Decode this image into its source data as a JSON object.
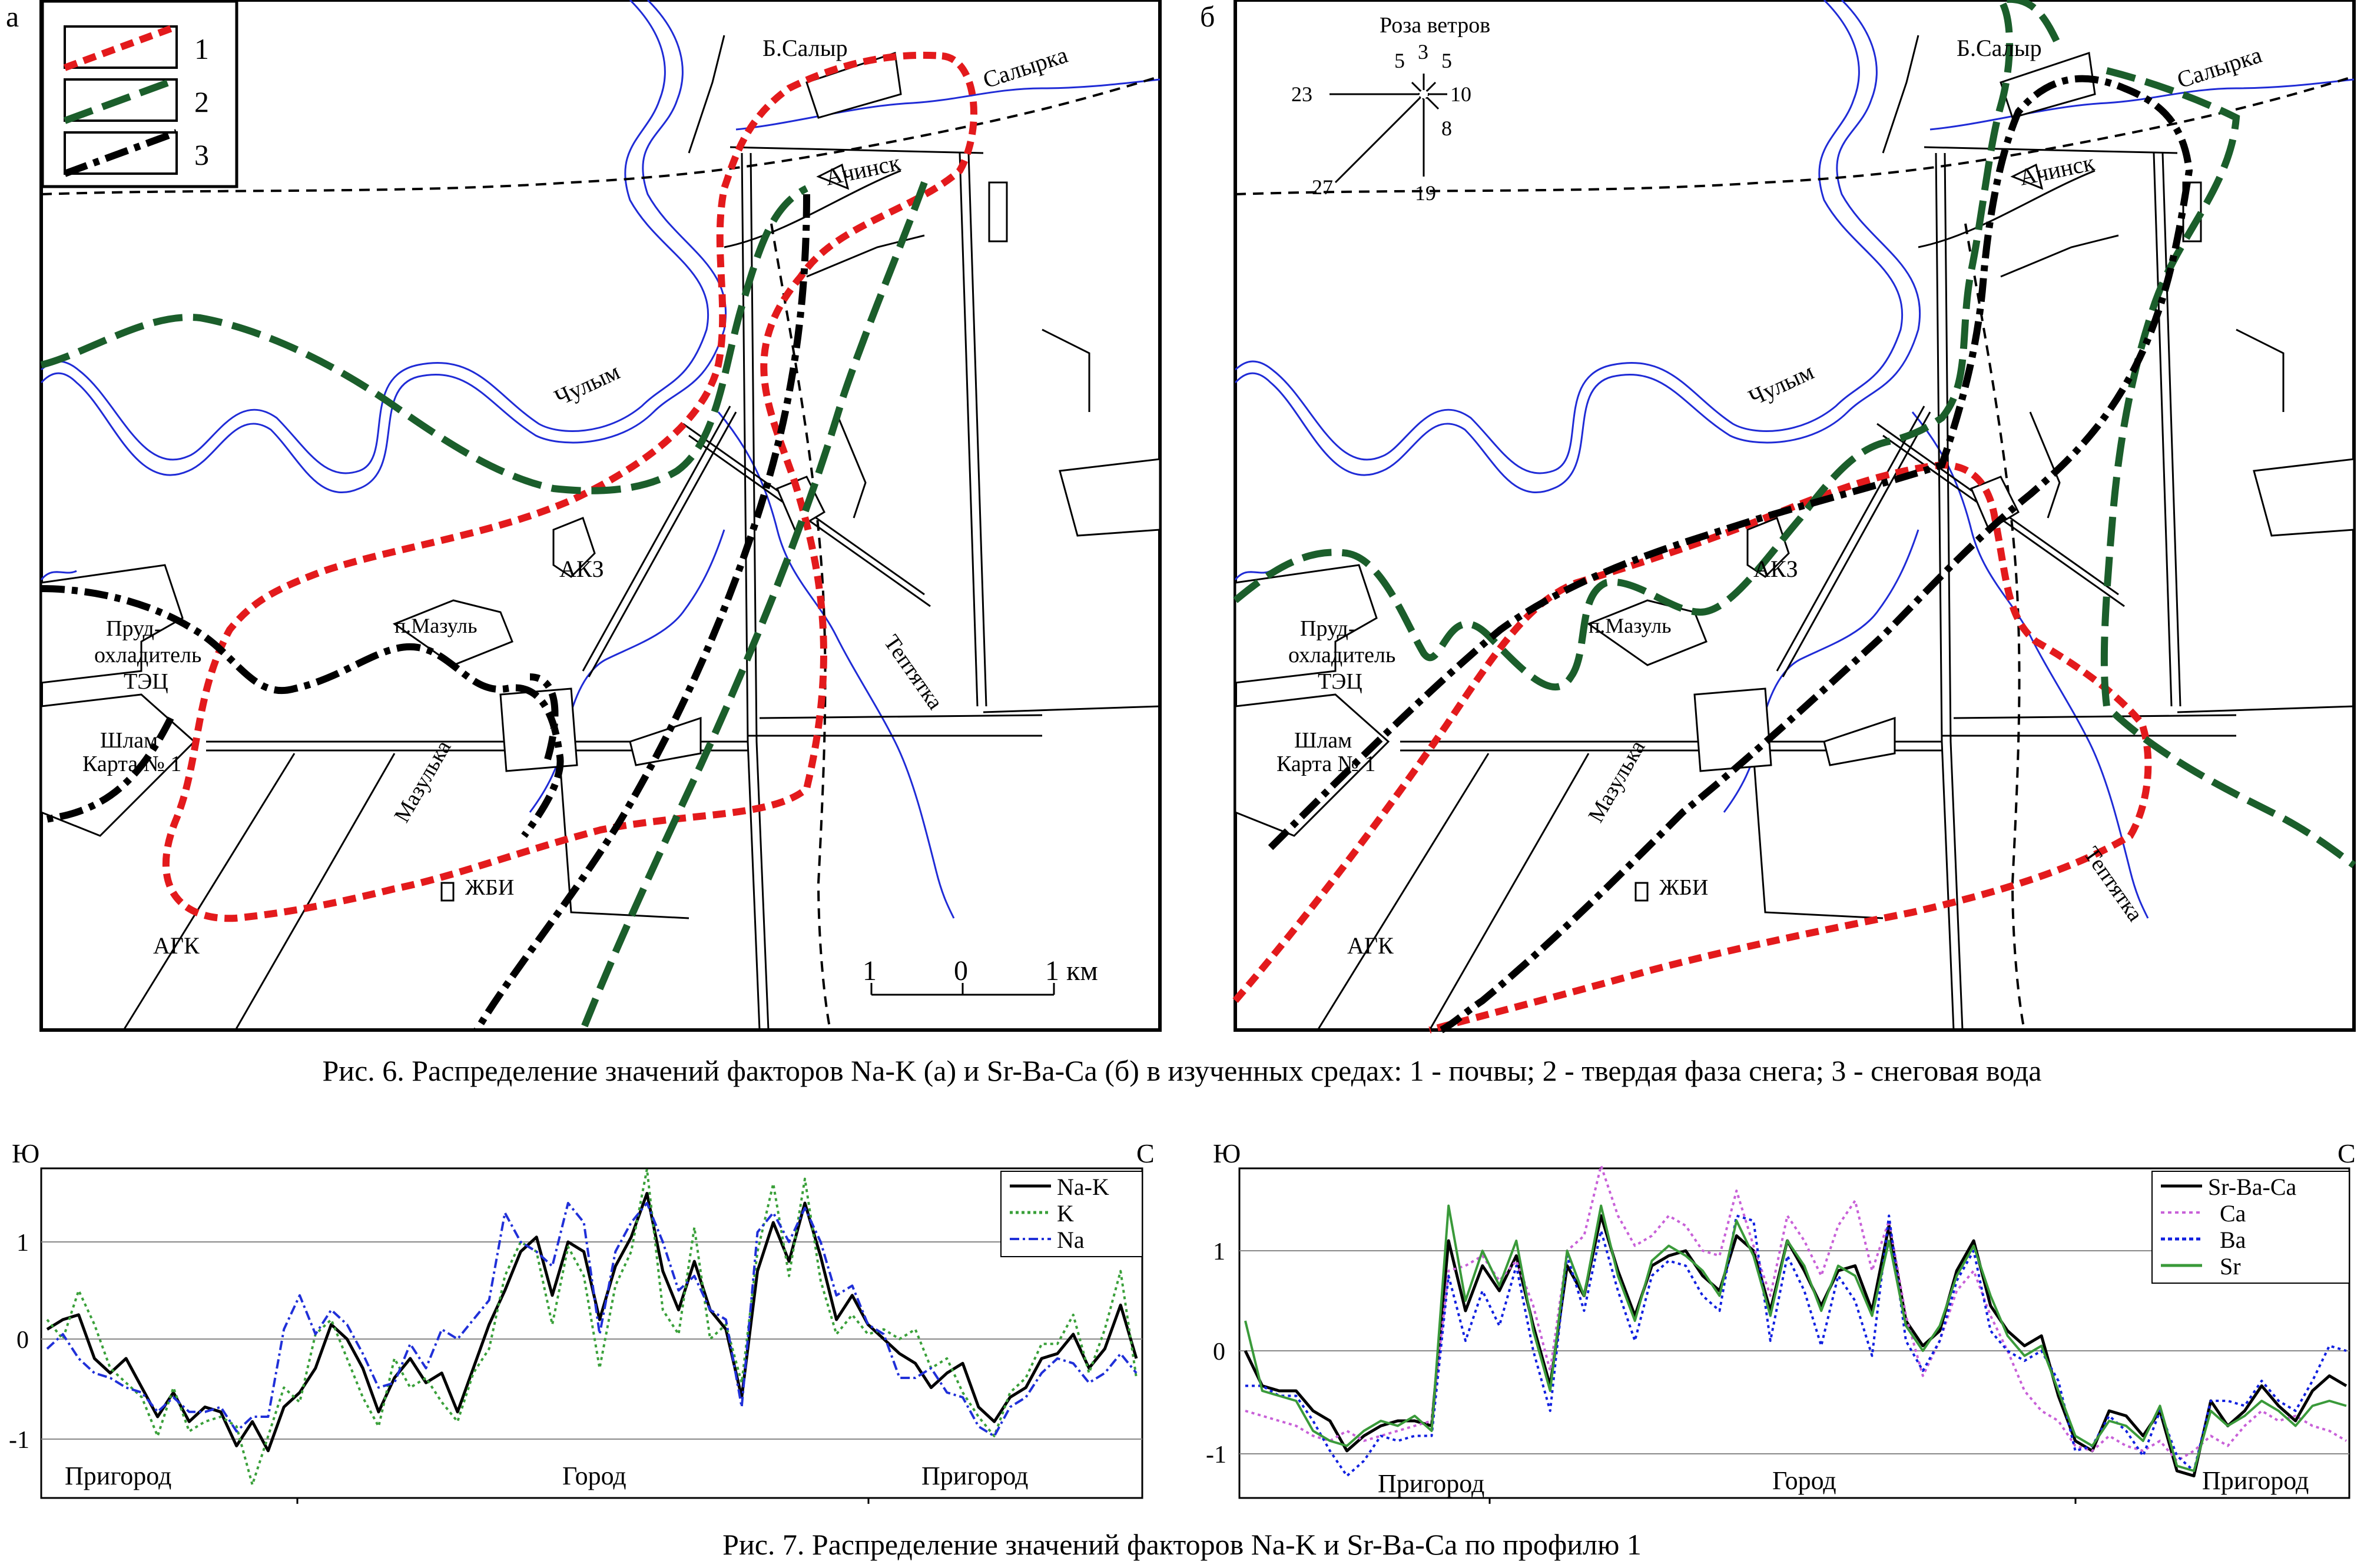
{
  "figure6": {
    "caption": "Рис. 6. Распределение  значений факторов Na-K (а) и Sr-Ba-Ca (б) в изученных средах: 1 - почвы; 2 - твердая фаза снега; 3 - снеговая вода",
    "legend": {
      "items": [
        "1",
        "2",
        "3"
      ]
    },
    "colors": {
      "soil": "#e31a1c",
      "snow_solid": "#1b5e2b",
      "snow_water": "#000000",
      "river": "#1f2bd6"
    },
    "map_a": {
      "panel_label": "а",
      "labels": {
        "b_salyr": "Б.Салыр",
        "salyrka": "Салырка",
        "achinsk": "Ачинск",
        "chulym": "Чулым",
        "akz": "АКЗ",
        "p_mazul": "п.Мазуль",
        "prud": "Пруд-",
        "okhladitel": "охладитель",
        "tets": "ТЭЦ",
        "shlam": "Шлам",
        "karta": "Карта № 1",
        "mazulka": "Мазулька",
        "teptyatka": "Тептятка",
        "zhbi": "ЖБИ",
        "agk": "АГК"
      },
      "scale": {
        "left": "1",
        "mid": "0",
        "right": "1 км"
      }
    },
    "map_b": {
      "panel_label": "б",
      "labels": {
        "b_salyr": "Б.Салыр",
        "salyrka": "Салырка",
        "achinsk": "Ачинск",
        "chulym": "Чулым",
        "akz": "АКЗ",
        "p_mazul": "п.Мазуль",
        "prud": "Пруд-",
        "okhladitel": "охладитель",
        "tets": "ТЭЦ",
        "shlam": "Шлам",
        "karta": "Карта № 1",
        "mazulka": "Мазулька",
        "teptyatka": "Тептятка",
        "zhbi": "ЖБИ",
        "agk": "АГК"
      },
      "wind_rose": {
        "title": "Роза ветров",
        "values": {
          "n": "3",
          "nw": "5",
          "ne": "5",
          "w": "23",
          "e": "10",
          "se": "8",
          "s": "19",
          "sw": "27"
        }
      }
    }
  },
  "figure7": {
    "caption": "Рис. 7. Распределение значений факторов Na-K и Sr-Ba-Ca  по профилю 1",
    "chart_left": {
      "south_label": "Ю",
      "north_label": "С",
      "zones": [
        "Пригород",
        "Город",
        "Пригород"
      ],
      "ticks": [
        "1",
        "0",
        "-1"
      ]
    },
    "chart_right": {
      "south_label": "Ю",
      "north_label": "С",
      "zones": [
        "Пригород",
        "Город",
        "Пригород"
      ],
      "ticks": [
        "1",
        "0",
        "-1"
      ]
    }
  },
  "chart_data": [
    {
      "type": "line",
      "ylim": [
        -1.65,
        1.75
      ],
      "grid": true,
      "legend_position": "top-right",
      "series": [
        {
          "name": "Na-K",
          "color": "#000000",
          "style": "solid",
          "values": [
            0.1,
            0.2,
            0.25,
            -0.2,
            -0.35,
            -0.2,
            -0.5,
            -0.8,
            -0.55,
            -0.85,
            -0.7,
            -0.75,
            -1.1,
            -0.85,
            -1.15,
            -0.7,
            -0.55,
            -0.3,
            0.15,
            0.0,
            -0.3,
            -0.75,
            -0.4,
            -0.2,
            -0.45,
            -0.35,
            -0.75,
            -0.3,
            0.15,
            0.5,
            0.9,
            1.05,
            0.45,
            1.0,
            0.9,
            0.2,
            0.75,
            1.05,
            1.5,
            0.7,
            0.3,
            0.8,
            0.3,
            0.1,
            -0.6,
            0.7,
            1.2,
            0.8,
            1.4,
            0.85,
            0.2,
            0.45,
            0.15,
            0.0,
            -0.15,
            -0.25,
            -0.5,
            -0.35,
            -0.25,
            -0.7,
            -0.85,
            -0.6,
            -0.5,
            -0.2,
            -0.15,
            0.05,
            -0.3,
            -0.1,
            0.35,
            -0.2
          ]
        },
        {
          "name": "K",
          "color": "#3aa03a",
          "style": "dotted",
          "values": [
            0.2,
            0.0,
            0.5,
            0.15,
            -0.3,
            -0.45,
            -0.6,
            -1.0,
            -0.5,
            -0.95,
            -0.85,
            -0.8,
            -0.9,
            -1.5,
            -1.0,
            -0.5,
            -0.65,
            0.05,
            0.2,
            -0.2,
            -0.6,
            -0.9,
            -0.2,
            -0.5,
            -0.4,
            -0.65,
            -0.85,
            -0.35,
            -0.1,
            0.65,
            1.0,
            0.9,
            0.15,
            0.95,
            0.65,
            -0.3,
            0.55,
            0.9,
            1.75,
            0.3,
            0.05,
            1.15,
            0.0,
            0.15,
            -0.45,
            0.9,
            1.6,
            0.65,
            1.65,
            0.6,
            0.05,
            0.25,
            0.05,
            0.1,
            0.0,
            0.1,
            -0.3,
            -0.2,
            -0.55,
            -0.8,
            -1.0,
            -0.55,
            -0.4,
            -0.05,
            -0.05,
            0.25,
            -0.35,
            0.1,
            0.7,
            -0.4
          ]
        },
        {
          "name": "Na",
          "color": "#2030d8",
          "style": "dashdot",
          "values": [
            -0.1,
            0.05,
            -0.2,
            -0.35,
            -0.4,
            -0.5,
            -0.55,
            -0.75,
            -0.6,
            -0.75,
            -0.75,
            -0.7,
            -0.95,
            -0.8,
            -0.8,
            0.1,
            0.45,
            0.05,
            0.3,
            0.15,
            -0.15,
            -0.5,
            -0.45,
            -0.05,
            -0.3,
            0.1,
            0.0,
            0.2,
            0.4,
            1.3,
            1.0,
            0.9,
            0.75,
            1.4,
            1.2,
            0.05,
            0.9,
            1.2,
            1.4,
            1.0,
            0.5,
            0.65,
            0.3,
            0.2,
            -0.7,
            1.1,
            1.3,
            1.0,
            1.35,
            1.0,
            0.45,
            0.55,
            0.15,
            0.05,
            -0.4,
            -0.4,
            -0.3,
            -0.55,
            -0.6,
            -0.9,
            -1.0,
            -0.7,
            -0.6,
            -0.35,
            -0.2,
            -0.25,
            -0.45,
            -0.35,
            -0.15,
            -0.35
          ]
        }
      ]
    },
    {
      "type": "line",
      "ylim": [
        -1.45,
        1.85
      ],
      "grid": true,
      "legend_position": "top-right",
      "series": [
        {
          "name": "Sr-Ba-Ca",
          "color": "#000000",
          "style": "solid",
          "values": [
            0.0,
            -0.35,
            -0.4,
            -0.4,
            -0.6,
            -0.7,
            -1.0,
            -0.85,
            -0.75,
            -0.7,
            -0.7,
            -0.75,
            1.1,
            0.4,
            0.85,
            0.6,
            0.95,
            0.25,
            -0.35,
            0.85,
            0.55,
            1.35,
            0.8,
            0.35,
            0.85,
            0.95,
            1.0,
            0.75,
            0.6,
            1.15,
            1.0,
            0.4,
            1.1,
            0.8,
            0.45,
            0.8,
            0.85,
            0.4,
            1.25,
            0.3,
            0.05,
            0.2,
            0.8,
            1.1,
            0.45,
            0.2,
            0.05,
            0.15,
            -0.45,
            -0.9,
            -1.0,
            -0.6,
            -0.65,
            -0.85,
            -0.6,
            -1.2,
            -1.25,
            -0.5,
            -0.75,
            -0.6,
            -0.35,
            -0.55,
            -0.7,
            -0.4,
            -0.25,
            -0.35
          ]
        },
        {
          "name": "Ca",
          "color": "#c860d8",
          "style": "dotted",
          "values": [
            -0.6,
            -0.65,
            -0.7,
            -0.75,
            -0.85,
            -0.9,
            -0.8,
            -0.9,
            -0.85,
            -0.8,
            -0.75,
            -0.7,
            0.8,
            0.85,
            0.95,
            0.7,
            0.9,
            0.45,
            -0.2,
            1.0,
            1.15,
            1.85,
            1.35,
            1.05,
            1.15,
            1.35,
            1.25,
            1.0,
            0.95,
            1.6,
            1.05,
            0.55,
            1.35,
            1.1,
            0.75,
            1.25,
            1.5,
            0.8,
            1.3,
            0.35,
            -0.25,
            0.1,
            0.6,
            0.8,
            0.35,
            0.0,
            -0.4,
            -0.6,
            -0.7,
            -0.95,
            -1.0,
            -0.85,
            -0.95,
            -1.0,
            -0.9,
            -1.1,
            -1.0,
            -0.85,
            -0.95,
            -0.75,
            -0.6,
            -0.7,
            -0.65,
            -0.75,
            -0.8,
            -0.9
          ]
        },
        {
          "name": "Ba",
          "color": "#1020e0",
          "style": "dotted",
          "values": [
            -0.35,
            -0.35,
            -0.45,
            -0.45,
            -0.7,
            -1.0,
            -1.25,
            -1.1,
            -0.85,
            -0.9,
            -0.85,
            -0.85,
            0.75,
            0.1,
            0.6,
            0.25,
            0.85,
            0.0,
            -0.6,
            0.95,
            0.4,
            1.2,
            0.6,
            0.1,
            0.75,
            0.9,
            0.85,
            0.55,
            0.4,
            1.35,
            1.3,
            0.1,
            0.95,
            0.6,
            0.05,
            0.75,
            0.5,
            -0.05,
            1.35,
            0.1,
            -0.2,
            0.1,
            0.7,
            1.0,
            0.2,
            0.0,
            -0.1,
            0.0,
            -0.3,
            -1.0,
            -0.95,
            -0.65,
            -0.8,
            -1.05,
            -0.6,
            -1.05,
            -1.2,
            -0.5,
            -0.5,
            -0.55,
            -0.3,
            -0.5,
            -0.6,
            -0.3,
            0.05,
            0.0
          ]
        },
        {
          "name": "Sr",
          "color": "#3a9a3a",
          "style": "solid",
          "values": [
            0.3,
            -0.4,
            -0.45,
            -0.5,
            -0.8,
            -0.9,
            -0.95,
            -0.8,
            -0.7,
            -0.75,
            -0.65,
            -0.8,
            1.45,
            0.5,
            1.0,
            0.65,
            1.1,
            0.2,
            -0.4,
            1.0,
            0.55,
            1.45,
            0.75,
            0.3,
            0.9,
            1.05,
            0.95,
            0.8,
            0.55,
            1.3,
            0.95,
            0.35,
            1.1,
            0.85,
            0.4,
            0.85,
            0.75,
            0.35,
            1.1,
            0.25,
            0.0,
            0.25,
            0.75,
            1.05,
            0.55,
            0.15,
            -0.05,
            0.05,
            -0.4,
            -0.85,
            -0.95,
            -0.7,
            -0.75,
            -0.9,
            -0.55,
            -1.15,
            -1.2,
            -0.6,
            -0.75,
            -0.65,
            -0.5,
            -0.6,
            -0.75,
            -0.55,
            -0.5,
            -0.55
          ]
        }
      ]
    }
  ]
}
